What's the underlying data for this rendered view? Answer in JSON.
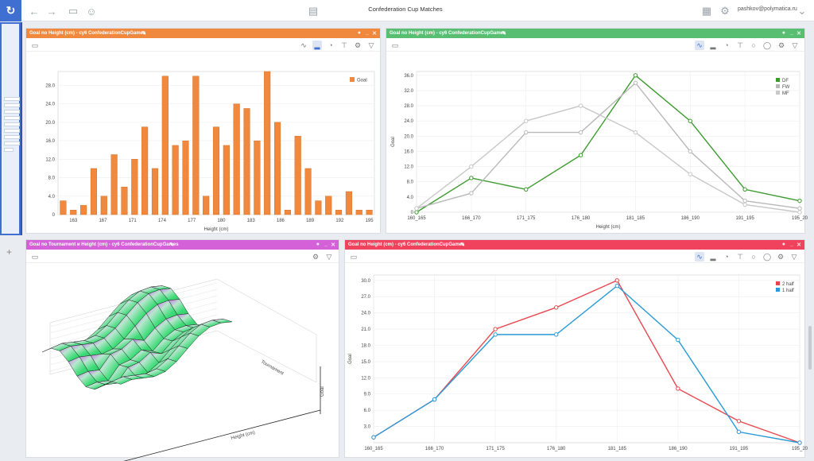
{
  "app": {
    "title": "Confederation Cup Matches",
    "user": "pashkov@polymatica.ru"
  },
  "panels": [
    {
      "title": "Goal no Height (cm) - cy6 ConfederationCupGames",
      "color": "#f0883e"
    },
    {
      "title": "Goal no Height (cm) - cy6 ConfederationCupGames",
      "color": "#58be72"
    },
    {
      "title": "Goal no Tournament и Height (cm) - cy6 ConfederationCupGames",
      "color": "#d561d9"
    },
    {
      "title": "Goal no Height (cm) - cy6 ConfederationCupGames",
      "color": "#f0425c"
    }
  ],
  "chart_data": [
    {
      "type": "bar",
      "xlabel": "Height (cm)",
      "ylabel": "",
      "ylim": [
        0,
        31
      ],
      "yticks": [
        "0",
        "4.0",
        "8.0",
        "12.0",
        "16.0",
        "20.0",
        "24.0",
        "28.0"
      ],
      "xticks": [
        "163",
        "167",
        "171",
        "174",
        "177",
        "180",
        "183",
        "186",
        "189",
        "192",
        "195"
      ],
      "legend": "top-right",
      "series": [
        {
          "name": "Goal",
          "color": "#f0883e"
        }
      ],
      "values": [
        3,
        1,
        2,
        10,
        4,
        13,
        6,
        12,
        19,
        10,
        30,
        15,
        16,
        30,
        4,
        19,
        15,
        24,
        23,
        16,
        31,
        20,
        1,
        17,
        10,
        3,
        4,
        1,
        5,
        1,
        1
      ]
    },
    {
      "type": "line",
      "xlabel": "Height (cm)",
      "ylabel": "Goal",
      "ylim": [
        0,
        37
      ],
      "yticks": [
        "0",
        "4.0",
        "8.0",
        "12.0",
        "16.0",
        "20.0",
        "24.0",
        "28.0",
        "32.0",
        "36.0"
      ],
      "categories": [
        "160_165",
        "166_170",
        "171_175",
        "176_180",
        "181_185",
        "186_190",
        "191_195",
        "195_20"
      ],
      "legend": "top-right",
      "series": [
        {
          "name": "DF",
          "color": "#3a9a2c",
          "values": [
            0,
            9,
            6,
            15,
            36,
            24,
            6,
            3
          ]
        },
        {
          "name": "FW",
          "color": "#b8b8b8",
          "values": [
            1,
            5,
            21,
            21,
            34,
            16,
            3,
            1
          ]
        },
        {
          "name": "MF",
          "color": "#c8c8c8",
          "values": [
            1,
            12,
            24,
            28,
            21,
            10,
            2,
            0
          ]
        }
      ]
    },
    {
      "type": "surface3d",
      "xlabel": "Height (cm)",
      "ylabel": "Goal",
      "zlabel": "Tournament"
    },
    {
      "type": "line",
      "xlabel": "",
      "ylabel": "Goal",
      "ylim": [
        0,
        31
      ],
      "yticks": [
        "3.0",
        "6.0",
        "9.0",
        "12.0",
        "15.0",
        "18.0",
        "21.0",
        "24.0",
        "27.0",
        "30.0"
      ],
      "categories": [
        "160_165",
        "166_170",
        "171_175",
        "176_180",
        "181_185",
        "186_190",
        "191_195",
        "195_20"
      ],
      "legend": "top-right",
      "series": [
        {
          "name": "2 half",
          "color": "#e8474e",
          "values": [
            1,
            8,
            21,
            25,
            30,
            10,
            4,
            0
          ]
        },
        {
          "name": "1 half",
          "color": "#2a9ad6",
          "values": [
            1,
            8,
            20,
            20,
            29,
            19,
            2,
            0
          ]
        }
      ]
    }
  ]
}
